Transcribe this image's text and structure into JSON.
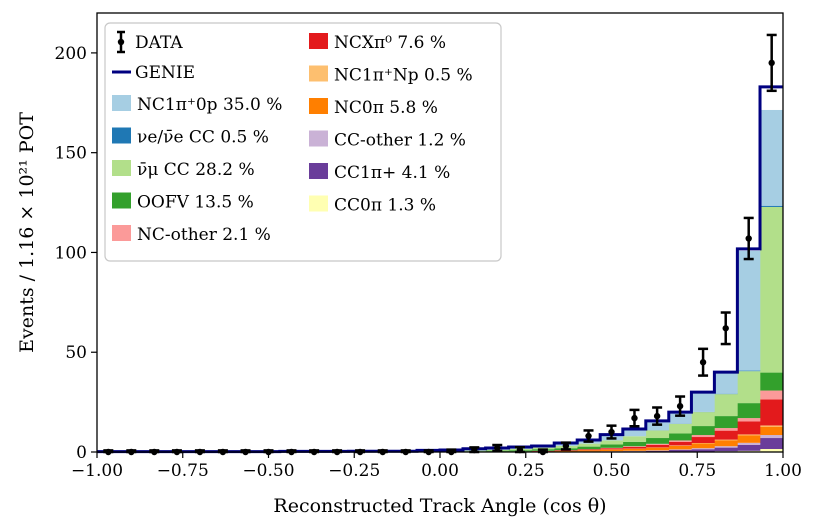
{
  "chart_data": {
    "type": "stacked-histogram",
    "xlabel": "Reconstructed Track Angle (cos θ)",
    "ylabel": "Events / 1.16 × 10²¹ POT",
    "xlim": [
      -1.0,
      1.0
    ],
    "ylim": [
      0,
      220
    ],
    "x_ticks": [
      -1.0,
      -0.75,
      -0.5,
      -0.25,
      0.0,
      0.25,
      0.5,
      0.75,
      1.0
    ],
    "x_tick_labels": [
      "−1.00",
      "−0.75",
      "−0.50",
      "−0.25",
      "0.00",
      "0.25",
      "0.50",
      "0.75",
      "1.00"
    ],
    "y_ticks": [
      0,
      50,
      100,
      150,
      200
    ],
    "y_tick_labels": [
      "0",
      "50",
      "100",
      "150",
      "200"
    ],
    "bin_edges": [
      -1.0,
      -0.933,
      -0.867,
      -0.8,
      -0.733,
      -0.667,
      -0.6,
      -0.533,
      -0.467,
      -0.4,
      -0.333,
      -0.267,
      -0.2,
      -0.133,
      -0.067,
      0.0,
      0.067,
      0.133,
      0.2,
      0.267,
      0.333,
      0.4,
      0.467,
      0.533,
      0.6,
      0.667,
      0.733,
      0.8,
      0.867,
      0.933,
      1.0
    ],
    "legend_position": "upper-left",
    "data_label": "DATA",
    "genie_label": "GENIE",
    "genie_color": "#000080",
    "series": [
      {
        "name": "CC0π",
        "percent": "1.3 %",
        "legend": "CC0π 1.3 %",
        "color": "#ffffb2",
        "values": [
          0,
          0,
          0,
          0,
          0,
          0,
          0,
          0,
          0,
          0,
          0,
          0,
          0,
          0,
          0,
          0,
          0,
          0,
          0,
          0,
          0,
          0,
          0,
          0,
          0,
          0.1,
          0.2,
          0.4,
          0.6,
          1.5
        ]
      },
      {
        "name": "CC1π+",
        "percent": "4.1 %",
        "legend": "CC1π+ 4.1 %",
        "color": "#6a3d9a",
        "values": [
          0,
          0,
          0,
          0,
          0,
          0,
          0,
          0,
          0,
          0,
          0,
          0,
          0,
          0,
          0,
          0,
          0,
          0,
          0,
          0,
          0.1,
          0.2,
          0.3,
          0.4,
          0.6,
          0.9,
          1.2,
          1.8,
          3.0,
          5.5
        ]
      },
      {
        "name": "CC-other",
        "percent": "1.2 %",
        "legend": "CC-other 1.2 %",
        "color": "#cab2d6",
        "values": [
          0,
          0,
          0,
          0,
          0,
          0,
          0,
          0,
          0,
          0,
          0,
          0,
          0,
          0,
          0,
          0,
          0,
          0,
          0,
          0,
          0,
          0.1,
          0.1,
          0.2,
          0.2,
          0.3,
          0.5,
          0.7,
          1.0,
          1.5
        ]
      },
      {
        "name": "NC0π",
        "percent": "5.8 %",
        "legend": "NC0π 5.8 %",
        "color": "#ff7f00",
        "values": [
          0,
          0,
          0,
          0,
          0,
          0,
          0,
          0,
          0,
          0,
          0,
          0,
          0,
          0,
          0,
          0,
          0.1,
          0.2,
          0.2,
          0.3,
          0.4,
          0.6,
          0.8,
          1.0,
          1.4,
          1.8,
          2.4,
          3.0,
          3.8,
          4.2
        ]
      },
      {
        "name": "NC1π+Np",
        "percent": "0.5 %",
        "legend": "NC1π⁺Np 0.5 %",
        "color": "#fdbf6f",
        "values": [
          0,
          0,
          0,
          0,
          0,
          0,
          0,
          0,
          0,
          0,
          0,
          0,
          0,
          0,
          0,
          0,
          0,
          0,
          0,
          0,
          0,
          0,
          0.1,
          0.1,
          0.1,
          0.2,
          0.2,
          0.3,
          0.4,
          0.6
        ]
      },
      {
        "name": "NCXπ0",
        "percent": "7.6 %",
        "legend": "NCXπ⁰ 7.6 %",
        "color": "#e31a1c",
        "values": [
          0,
          0,
          0,
          0,
          0,
          0,
          0,
          0,
          0,
          0,
          0,
          0,
          0,
          0,
          0,
          0,
          0,
          0.1,
          0.1,
          0.2,
          0.3,
          0.4,
          0.6,
          0.9,
          1.3,
          1.8,
          3.0,
          4.5,
          6.5,
          13.0
        ]
      },
      {
        "name": "NC-other",
        "percent": "2.1 %",
        "legend": "NC-other 2.1 %",
        "color": "#fb9a99",
        "values": [
          0,
          0,
          0,
          0,
          0,
          0,
          0,
          0,
          0,
          0,
          0,
          0,
          0,
          0,
          0,
          0,
          0,
          0,
          0,
          0.1,
          0.1,
          0.1,
          0.2,
          0.3,
          0.5,
          0.7,
          1.0,
          1.3,
          1.7,
          4.5
        ]
      },
      {
        "name": "OOFV",
        "percent": "13.5 %",
        "legend": "OOFV 13.5 %",
        "color": "#33a02c",
        "values": [
          0,
          0,
          0,
          0,
          0,
          0,
          0,
          0,
          0,
          0,
          0,
          0,
          0,
          0,
          0.1,
          0.2,
          0.3,
          0.4,
          0.6,
          0.8,
          1.0,
          1.3,
          1.7,
          2.2,
          2.9,
          3.5,
          4.5,
          6.0,
          7.5,
          9.0
        ]
      },
      {
        "name": "anti-numu CC",
        "percent": "28.2 %",
        "legend": "ν̄μ CC 28.2 %",
        "color": "#b2df8a",
        "values": [
          0,
          0,
          0,
          0,
          0,
          0,
          0,
          0,
          0,
          0,
          0,
          0,
          0,
          0,
          0.1,
          0.2,
          0.3,
          0.4,
          0.6,
          0.8,
          1.1,
          1.5,
          2.0,
          2.8,
          3.8,
          4.8,
          7.0,
          11.0,
          16.0,
          83.0
        ]
      },
      {
        "name": "nue CC",
        "percent": "0.5 %",
        "legend": "νe/ν̄e CC 0.5 %",
        "color": "#1f78b4",
        "values": [
          0,
          0,
          0,
          0,
          0,
          0,
          0,
          0,
          0,
          0,
          0,
          0,
          0,
          0,
          0,
          0,
          0,
          0,
          0,
          0,
          0,
          0,
          0,
          0,
          0.1,
          0.1,
          0.1,
          0.2,
          0.3,
          0.6
        ]
      },
      {
        "name": "NC1π+0p",
        "percent": "35.0 %",
        "legend": "NC1π⁺0p 35.0 %",
        "color": "#a6cee3",
        "values": [
          0,
          0,
          0,
          0,
          0,
          0,
          0,
          0,
          0,
          0,
          0,
          0,
          0,
          0,
          0.1,
          0.2,
          0.3,
          0.5,
          0.7,
          0.9,
          1.3,
          1.8,
          2.6,
          3.5,
          4.6,
          6.0,
          10.0,
          10.5,
          60.0,
          48.0
        ]
      }
    ],
    "genie_totals": [
      0.2,
      0.2,
      0.2,
      0.2,
      0.2,
      0.2,
      0.2,
      0.2,
      0.3,
      0.3,
      0.3,
      0.4,
      0.4,
      0.4,
      0.8,
      1.0,
      1.6,
      2.0,
      2.5,
      3.0,
      4.5,
      6.0,
      8.7,
      11.5,
      15.6,
      20.0,
      30.0,
      40.0,
      101.8,
      183.0
    ],
    "data_points": [
      {
        "x": -0.967,
        "y": 0,
        "err": 0.8
      },
      {
        "x": -0.9,
        "y": 0,
        "err": 0.8
      },
      {
        "x": -0.833,
        "y": 0,
        "err": 0.8
      },
      {
        "x": -0.767,
        "y": 0,
        "err": 0.8
      },
      {
        "x": -0.7,
        "y": 0,
        "err": 0.8
      },
      {
        "x": -0.633,
        "y": 0,
        "err": 0.8
      },
      {
        "x": -0.567,
        "y": 0,
        "err": 0.8
      },
      {
        "x": -0.5,
        "y": 0,
        "err": 0.8
      },
      {
        "x": -0.433,
        "y": 0,
        "err": 0.8
      },
      {
        "x": -0.367,
        "y": 0,
        "err": 0.8
      },
      {
        "x": -0.3,
        "y": 0,
        "err": 0.8
      },
      {
        "x": -0.233,
        "y": 0,
        "err": 0.8
      },
      {
        "x": -0.167,
        "y": 0,
        "err": 0.8
      },
      {
        "x": -0.1,
        "y": 0,
        "err": 0.8
      },
      {
        "x": -0.033,
        "y": 0,
        "err": 0.8
      },
      {
        "x": 0.033,
        "y": 0,
        "err": 1.2
      },
      {
        "x": 0.1,
        "y": 1,
        "err": 1.3
      },
      {
        "x": 0.167,
        "y": 2,
        "err": 1.5
      },
      {
        "x": 0.233,
        "y": 1,
        "err": 1.4
      },
      {
        "x": 0.3,
        "y": 0,
        "err": 1.2
      },
      {
        "x": 0.367,
        "y": 3,
        "err": 1.7
      },
      {
        "x": 0.433,
        "y": 8,
        "err": 2.8
      },
      {
        "x": 0.5,
        "y": 10,
        "err": 3.2
      },
      {
        "x": 0.567,
        "y": 17,
        "err": 4.1
      },
      {
        "x": 0.633,
        "y": 18,
        "err": 4.3
      },
      {
        "x": 0.7,
        "y": 23,
        "err": 4.8
      },
      {
        "x": 0.767,
        "y": 45,
        "err": 6.7
      },
      {
        "x": 0.833,
        "y": 62,
        "err": 7.9
      },
      {
        "x": 0.9,
        "y": 107,
        "err": 10.3
      },
      {
        "x": 0.967,
        "y": 195,
        "err": 14.0
      }
    ]
  }
}
